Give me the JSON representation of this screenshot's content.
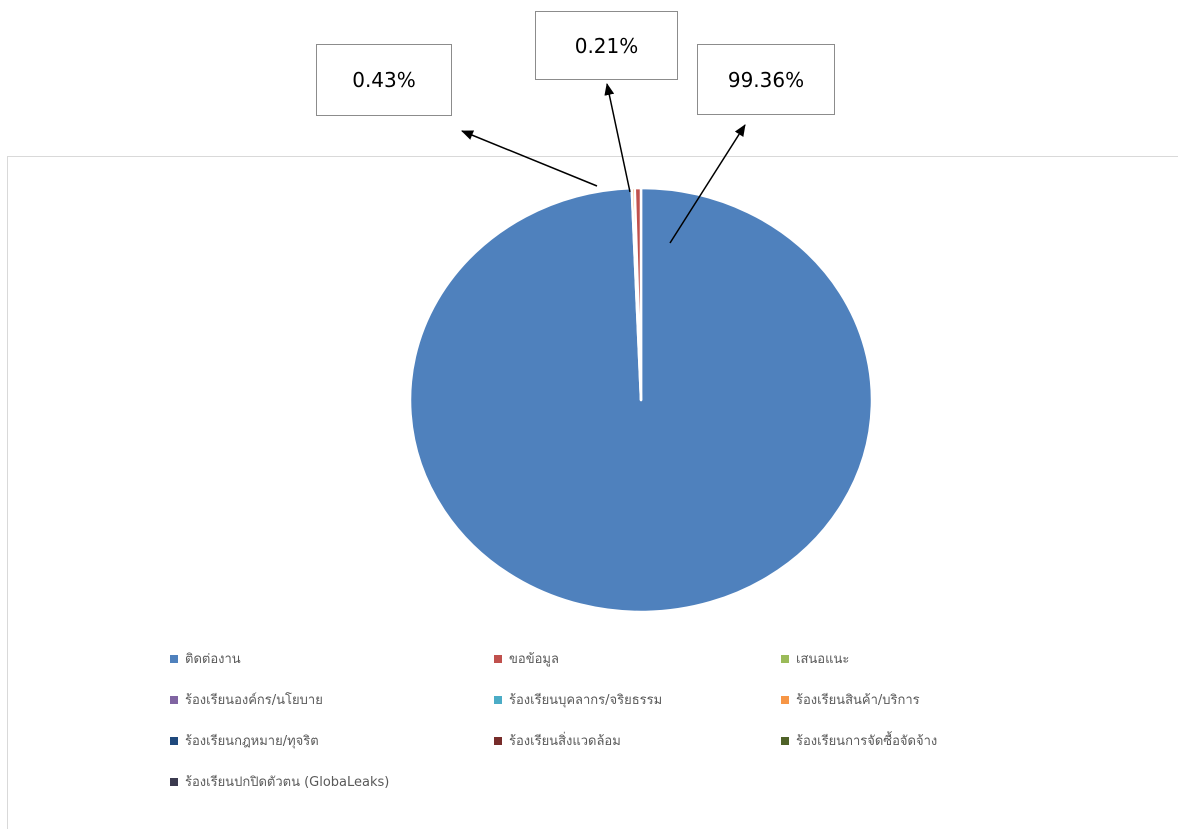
{
  "chart_data": {
    "type": "pie",
    "title": "",
    "slices": [
      {
        "label": "ติดต่องาน",
        "value": 99.36,
        "color": "#4f81bd"
      },
      {
        "label": "ขอข้อมูล",
        "value": 0.43,
        "color": "#c0504d"
      },
      {
        "label": "เสนอแนะ",
        "value": 0,
        "color": "#9bbb59"
      },
      {
        "label": "ร้องเรียนองค์กร/นโยบาย",
        "value": 0,
        "color": "#8064a2"
      },
      {
        "label": "ร้องเรียนบุคลากร/จริยธรรม",
        "value": 0,
        "color": "#4bacc6"
      },
      {
        "label": "ร้องเรียนสินค้า/บริการ",
        "value": 0.21,
        "color": "#f79646"
      },
      {
        "label": "ร้องเรียนกฎหมาย/ทุจริต",
        "value": 0,
        "color": "#1f497d"
      },
      {
        "label": "ร้องเรียนสิ่งแวดล้อม",
        "value": 0,
        "color": "#772c2a"
      },
      {
        "label": "ร้องเรียนการจัดซื้อจัดจ้าง",
        "value": 0,
        "color": "#4f6228"
      },
      {
        "label": "ร้องเรียนปกปิดตัวตน (GlobaLeaks)",
        "value": 0,
        "color": "#3b3a4f"
      }
    ],
    "legend_position": "bottom"
  },
  "callouts": [
    {
      "text": "0.43%"
    },
    {
      "text": "0.21%"
    },
    {
      "text": "99.36%"
    }
  ]
}
